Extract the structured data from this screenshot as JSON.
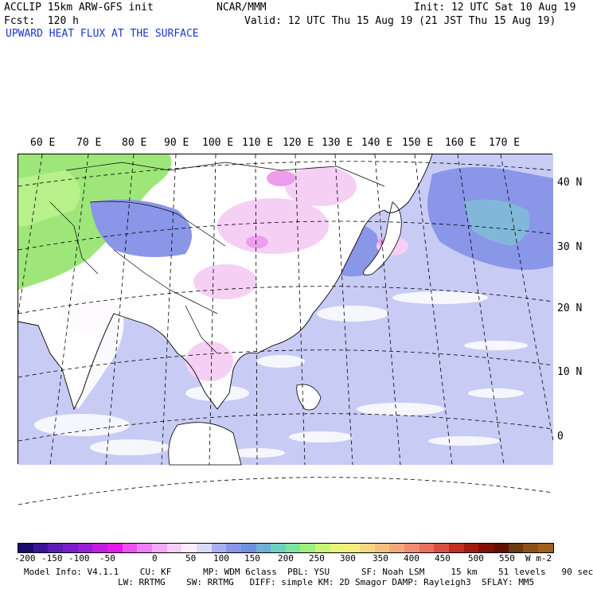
{
  "header": {
    "model_line": "ACCLIP 15km ARW-GFS init",
    "org": "NCAR/MMM",
    "init": "Init: 12 UTC Sat 10 Aug 19",
    "fcst": "Fcst:  120 h",
    "valid": "Valid: 12 UTC Thu 15 Aug 19 (21 JST Thu 15 Aug 19)",
    "field_title": "UPWARD HEAT FLUX AT THE SURFACE"
  },
  "longitude_labels": [
    "60 E",
    "70 E",
    "80 E",
    "90 E",
    "100 E",
    "110 E",
    "120 E",
    "130 E",
    "140 E",
    "150 E",
    "160 E",
    "170 E"
  ],
  "latitude_labels": [
    "40 N",
    "30 N",
    "20 N",
    "10 N",
    "0"
  ],
  "colorbar": {
    "tick_labels": [
      "-200",
      "-150",
      "-100",
      "-50",
      "0",
      "50",
      "100",
      "150",
      "200",
      "250",
      "300",
      "350",
      "400",
      "450",
      "500",
      "550"
    ],
    "units": "W m-2",
    "stops": [
      "#1a0a6e",
      "#3c1496",
      "#5a1eb4",
      "#7a1ec8",
      "#9a1ed2",
      "#c01edc",
      "#e01ee6",
      "#f050f0",
      "#f07ef4",
      "#f4a8f6",
      "#f8ccf8",
      "#fcecfc",
      "#d8dcfa",
      "#a8b0f0",
      "#8a96e8",
      "#7090dc",
      "#70b0d8",
      "#70d0c0",
      "#80e4a0",
      "#a0ee80",
      "#c8f478",
      "#e8f478",
      "#f6ee80",
      "#f4d880",
      "#f4c080",
      "#f2a878",
      "#f08c70",
      "#e87060",
      "#d85040",
      "#c03020",
      "#a01c10",
      "#801008",
      "#601004",
      "#6a3a10",
      "#8a5018",
      "#a06020"
    ]
  },
  "footer": {
    "line1": "Model Info: V4.1.1    CU: KF      MP: WDM 6class  PBL: YSU      SF: Noah LSM     15 km    51 levels   90 sec",
    "line2": "LW: RRTMG    SW: RRTMG   DIFF: simple KM: 2D Smagor DAMP: Rayleigh3  SFLAY: MM5"
  },
  "colors": {
    "title_blue": "#1f35c8",
    "land_white": "#ffffff",
    "ocean_lavender": "#c8ccf4",
    "ocean_blue": "#8a96e8",
    "land_green": "#9ee67a",
    "land_pink": "#f6d0f4"
  }
}
